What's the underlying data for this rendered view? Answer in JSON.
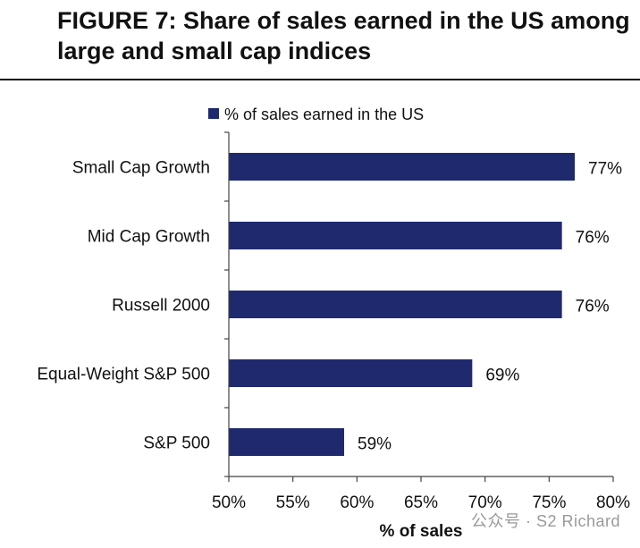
{
  "figure": {
    "label": "FIGURE 7",
    "separator": ":",
    "title": " Share of sales earned in the US among large and small cap indices"
  },
  "chart_data": {
    "type": "bar",
    "orientation": "horizontal",
    "categories": [
      "Small Cap Growth",
      "Mid Cap Growth",
      "Russell 2000",
      "Equal-Weight S&P 500",
      "S&P 500"
    ],
    "series": [
      {
        "name": "% of sales earned in the US",
        "values": [
          77,
          76,
          76,
          69,
          59
        ],
        "data_labels": [
          "77%",
          "76%",
          "76%",
          "69%",
          "59%"
        ],
        "color": "#1f2a6e"
      }
    ],
    "xlabel": "% of sales",
    "xlim": [
      50,
      80
    ],
    "xticks": [
      50,
      55,
      60,
      65,
      70,
      75,
      80
    ],
    "xtick_labels": [
      "50%",
      "55%",
      "60%",
      "65%",
      "70%",
      "75%",
      "80%"
    ],
    "grid": false,
    "legend_position": "top"
  },
  "watermark": {
    "text": "公众号 · S2 Richard"
  }
}
